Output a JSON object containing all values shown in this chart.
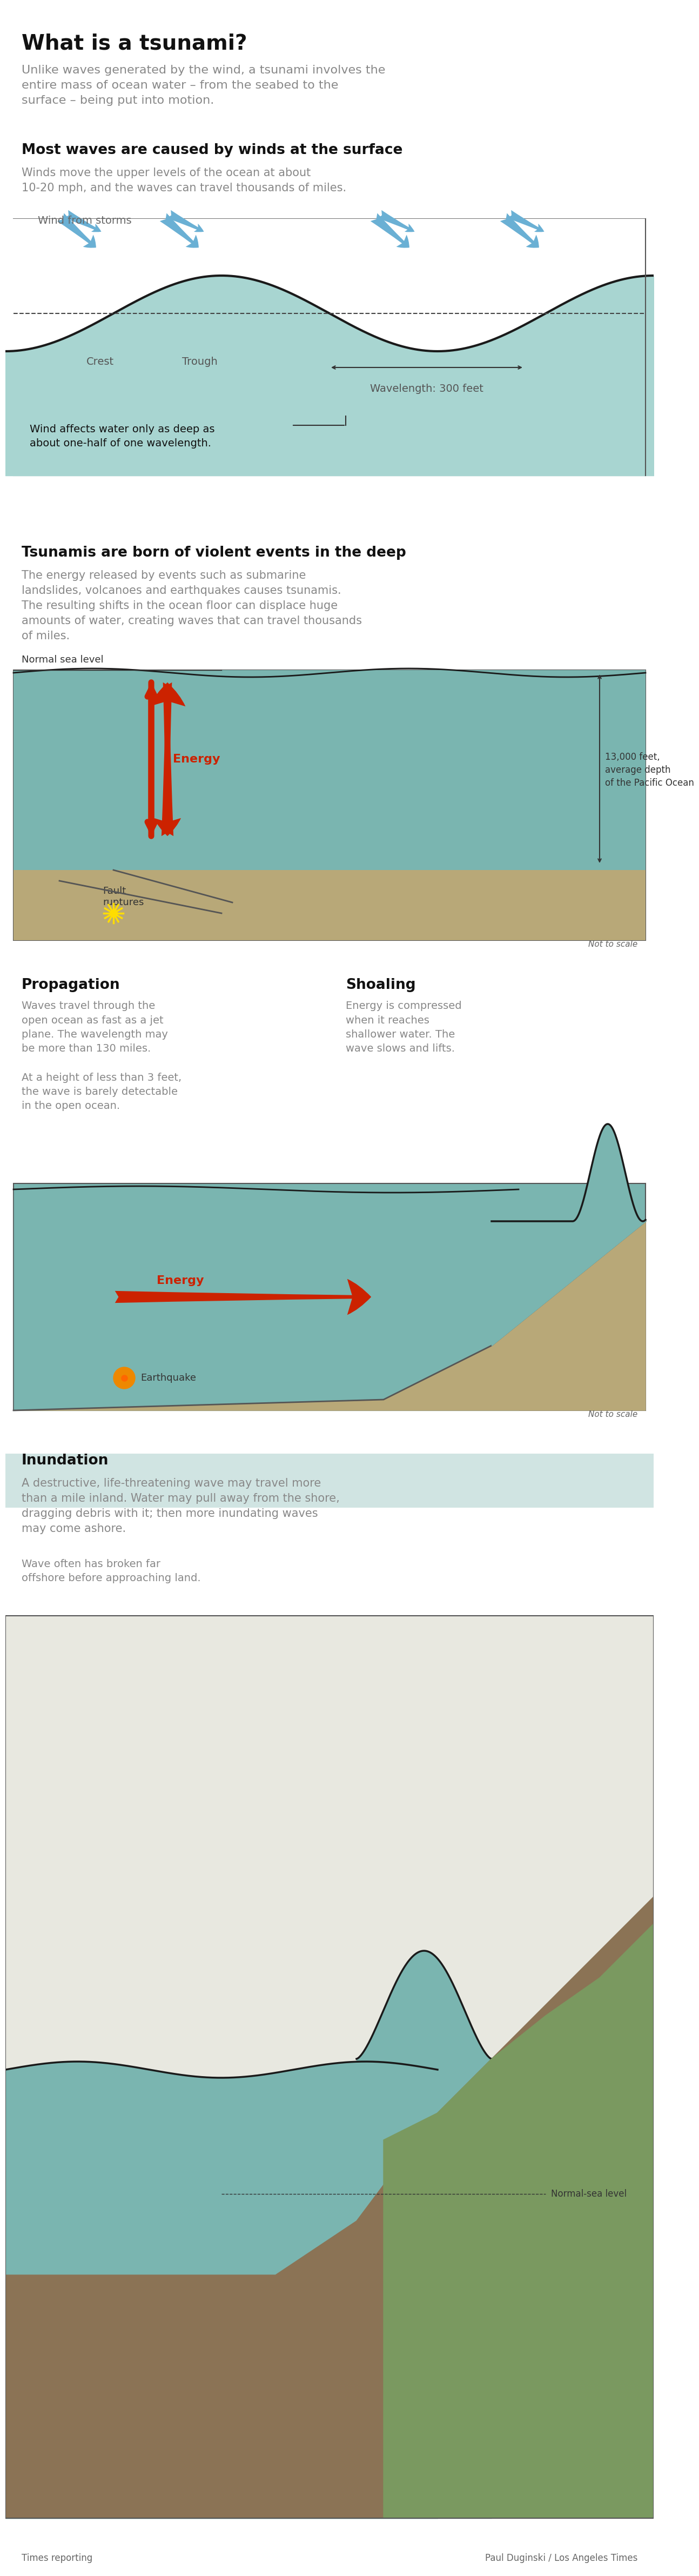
{
  "title": "What is a tsunami?",
  "title_fontsize": 28,
  "bg_color": "#ffffff",
  "intro_text": "Unlike waves generated by the wind, a tsunami involves the\nentire mass of ocean water – from the seabed to the\nsurface – being put into motion.",
  "section1_title": "Most waves are caused by winds at the surface",
  "section1_body": "Winds move the upper levels of the ocean at about\n10-20 mph, and the waves can travel thousands of miles.",
  "section1_label1": "Wind from storms",
  "section1_label2": "Crest",
  "section1_label3": "Trough",
  "section1_label4": "Wavelength: 300 feet",
  "section1_box_text": "Wind affects water only as deep as\nabout one-half of one wavelength.",
  "ocean_color": "#a8d5d1",
  "wave_line_color": "#1a1a1a",
  "dashed_line_color": "#444444",
  "arrow_blue": "#6ab0d4",
  "section2_title": "Tsunamis are born of violent events in the deep",
  "section2_body": "The energy released by events such as submarine\nlandslides, volcanoes and earthquakes causes tsunamis.\nThe resulting shifts in the ocean floor can displace huge\namounts of water, creating waves that can travel thousands\nof miles.",
  "section2_label_sealevel": "Normal sea level",
  "section2_label_depth": "13,000 feet,\naverage depth\nof the Pacific Ocean",
  "section2_label_energy": "Energy",
  "section2_label_fault": "Fault\nruptures",
  "section2_notscale": "Not to scale",
  "deep_ocean_color": "#7ab5b0",
  "seafloor_color": "#b8a878",
  "red_arrow": "#cc2200",
  "section3a_title": "Propagation",
  "section3a_body": "Waves travel through the\nopen ocean as fast as a jet\nplane. The wavelength may\nbe more than 130 miles.\n\nAt a height of less than 3 feet,\nthe wave is barely detectable\nin the open ocean.",
  "section3b_title": "Shoaling",
  "section3b_body": "Energy is compressed\nwhen it reaches\nshallower water. The\nwave slows and lifts.",
  "section3_label_energy": "Energy",
  "section3_label_quake": "Earthquake",
  "section3_notscale": "Not to scale",
  "section4_title": "Inundation",
  "section4_body": "A destructive, life-threatening wave may travel more\nthan a mile inland. Water may pull away from the shore,\ndragging debris with it; then more inundating waves\nmay come ashore.",
  "section4_subtext": "Wave often has broken far\noffshore before approaching land.",
  "section4_label": "Normal-sea level",
  "footer_left": "Times reporting",
  "footer_right": "Paul Duginski / Los Angeles Times",
  "inundation_water": "#7ab5b0",
  "section_title_color": "#111111",
  "body_text_color": "#666666",
  "box_border_color": "#888888"
}
